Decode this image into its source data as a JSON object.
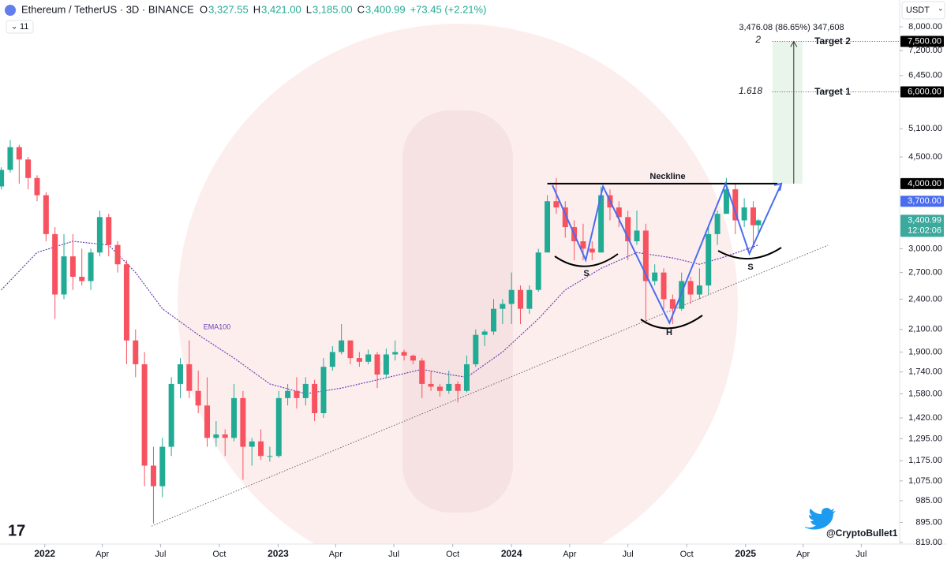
{
  "chart_data": {
    "type": "candlestick",
    "log_scale": true,
    "up_color": "#22ab94",
    "down_color": "#f7525f",
    "xlim": [
      "2021-10-23",
      "2025-08-30"
    ],
    "ylim": [
      813,
      9006
    ],
    "xticks": [
      {
        "value": "2022-01-01",
        "label": "2022"
      },
      {
        "value": "2022-04-01",
        "label": "Apr"
      },
      {
        "value": "2022-07-01",
        "label": "Jul"
      },
      {
        "value": "2022-10-01",
        "label": "Oct"
      },
      {
        "value": "2023-01-01",
        "label": "2023"
      },
      {
        "value": "2023-04-01",
        "label": "Apr"
      },
      {
        "value": "2023-07-01",
        "label": "Jul"
      },
      {
        "value": "2023-10-01",
        "label": "Oct"
      },
      {
        "value": "2024-01-01",
        "label": "2024"
      },
      {
        "value": "2024-04-01",
        "label": "Apr"
      },
      {
        "value": "2024-07-01",
        "label": "Jul"
      },
      {
        "value": "2024-10-01",
        "label": "Oct"
      },
      {
        "value": "2025-01-01",
        "label": "2025"
      },
      {
        "value": "2025-04-01",
        "label": "Apr"
      },
      {
        "value": "2025-07-01",
        "label": "Jul"
      }
    ],
    "yticks": [
      {
        "value": 8000,
        "label": "8,000.00"
      },
      {
        "value": 7200,
        "label": "7,200.00"
      },
      {
        "value": 6450,
        "label": "6,450.00"
      },
      {
        "value": 5100,
        "label": "5,100.00"
      },
      {
        "value": 4500,
        "label": "4,500.00"
      },
      {
        "value": 3000,
        "label": "3,000.00"
      },
      {
        "value": 2700,
        "label": "2,700.00"
      },
      {
        "value": 2400,
        "label": "2,400.00"
      },
      {
        "value": 2100,
        "label": "2,100.00"
      },
      {
        "value": 1900,
        "label": "1,900.00"
      },
      {
        "value": 1740,
        "label": "1,740.00"
      },
      {
        "value": 1580,
        "label": "1,580.00"
      },
      {
        "value": 1420,
        "label": "1,420.00"
      },
      {
        "value": 1295,
        "label": "1,295.00"
      },
      {
        "value": 1175,
        "label": "1,175.00"
      },
      {
        "value": 1075,
        "label": "1,075.00"
      },
      {
        "value": 985,
        "label": "985.00"
      },
      {
        "value": 895,
        "label": "895.00"
      },
      {
        "value": 819,
        "label": "819.00"
      }
    ],
    "price_labels": [
      {
        "value": 7500,
        "label": "7,500.00",
        "color": "#000000"
      },
      {
        "value": 6000,
        "label": "6,000.00",
        "color": "#000000"
      },
      {
        "value": 4000,
        "label": "4,000.00",
        "color": "#000000"
      },
      {
        "value": 3700,
        "label": "3,700.00",
        "color": "#4a6cf0"
      },
      {
        "value": 3400.99,
        "label": "3,400.99",
        "sub": "12:02:06",
        "color": "#3ba99c"
      }
    ],
    "candles": [
      {
        "t": "2021-10-25",
        "o": 3950,
        "h": 4300,
        "l": 3900,
        "c": 4250
      },
      {
        "t": "2021-11-08",
        "o": 4250,
        "h": 4850,
        "l": 4200,
        "c": 4700
      },
      {
        "t": "2021-11-22",
        "o": 4700,
        "h": 4750,
        "l": 4000,
        "c": 4450
      },
      {
        "t": "2021-12-06",
        "o": 4450,
        "h": 4500,
        "l": 3900,
        "c": 4100
      },
      {
        "t": "2021-12-20",
        "o": 4100,
        "h": 4150,
        "l": 3700,
        "c": 3800
      },
      {
        "t": "2022-01-03",
        "o": 3800,
        "h": 3850,
        "l": 3100,
        "c": 3200
      },
      {
        "t": "2022-01-17",
        "o": 3200,
        "h": 3300,
        "l": 2200,
        "c": 2450
      },
      {
        "t": "2022-01-31",
        "o": 2450,
        "h": 3200,
        "l": 2400,
        "c": 2900
      },
      {
        "t": "2022-02-14",
        "o": 2900,
        "h": 3200,
        "l": 2500,
        "c": 2650
      },
      {
        "t": "2022-02-28",
        "o": 2650,
        "h": 3000,
        "l": 2550,
        "c": 2600
      },
      {
        "t": "2022-03-14",
        "o": 2600,
        "h": 3000,
        "l": 2500,
        "c": 2950
      },
      {
        "t": "2022-03-28",
        "o": 2950,
        "h": 3550,
        "l": 2900,
        "c": 3450
      },
      {
        "t": "2022-04-11",
        "o": 3450,
        "h": 3500,
        "l": 2900,
        "c": 3050
      },
      {
        "t": "2022-04-25",
        "o": 3050,
        "h": 3100,
        "l": 2700,
        "c": 2800
      },
      {
        "t": "2022-05-09",
        "o": 2800,
        "h": 2850,
        "l": 1800,
        "c": 2000
      },
      {
        "t": "2022-05-23",
        "o": 2000,
        "h": 2100,
        "l": 1700,
        "c": 1800
      },
      {
        "t": "2022-06-06",
        "o": 1800,
        "h": 1900,
        "l": 1050,
        "c": 1150
      },
      {
        "t": "2022-06-20",
        "o": 1150,
        "h": 1250,
        "l": 890,
        "c": 1050
      },
      {
        "t": "2022-07-04",
        "o": 1050,
        "h": 1300,
        "l": 1000,
        "c": 1250
      },
      {
        "t": "2022-07-18",
        "o": 1250,
        "h": 1700,
        "l": 1200,
        "c": 1650
      },
      {
        "t": "2022-08-01",
        "o": 1650,
        "h": 1850,
        "l": 1550,
        "c": 1800
      },
      {
        "t": "2022-08-15",
        "o": 1800,
        "h": 2000,
        "l": 1550,
        "c": 1600
      },
      {
        "t": "2022-08-29",
        "o": 1600,
        "h": 1750,
        "l": 1450,
        "c": 1500
      },
      {
        "t": "2022-09-12",
        "o": 1500,
        "h": 1700,
        "l": 1250,
        "c": 1300
      },
      {
        "t": "2022-09-26",
        "o": 1300,
        "h": 1400,
        "l": 1250,
        "c": 1320
      },
      {
        "t": "2022-10-10",
        "o": 1320,
        "h": 1350,
        "l": 1200,
        "c": 1300
      },
      {
        "t": "2022-10-24",
        "o": 1300,
        "h": 1650,
        "l": 1280,
        "c": 1550
      },
      {
        "t": "2022-11-07",
        "o": 1550,
        "h": 1600,
        "l": 1080,
        "c": 1250
      },
      {
        "t": "2022-11-21",
        "o": 1250,
        "h": 1300,
        "l": 1150,
        "c": 1280
      },
      {
        "t": "2022-12-05",
        "o": 1280,
        "h": 1350,
        "l": 1180,
        "c": 1200
      },
      {
        "t": "2022-12-19",
        "o": 1200,
        "h": 1250,
        "l": 1170,
        "c": 1200
      },
      {
        "t": "2023-01-02",
        "o": 1200,
        "h": 1600,
        "l": 1190,
        "c": 1550
      },
      {
        "t": "2023-01-16",
        "o": 1550,
        "h": 1650,
        "l": 1500,
        "c": 1600
      },
      {
        "t": "2023-01-30",
        "o": 1600,
        "h": 1700,
        "l": 1480,
        "c": 1550
      },
      {
        "t": "2023-02-13",
        "o": 1550,
        "h": 1700,
        "l": 1500,
        "c": 1650
      },
      {
        "t": "2023-02-27",
        "o": 1650,
        "h": 1680,
        "l": 1400,
        "c": 1450
      },
      {
        "t": "2023-03-13",
        "o": 1450,
        "h": 1850,
        "l": 1420,
        "c": 1780
      },
      {
        "t": "2023-03-27",
        "o": 1780,
        "h": 1950,
        "l": 1750,
        "c": 1900
      },
      {
        "t": "2023-04-10",
        "o": 1900,
        "h": 2150,
        "l": 1880,
        "c": 2000
      },
      {
        "t": "2023-04-24",
        "o": 2000,
        "h": 2000,
        "l": 1800,
        "c": 1850
      },
      {
        "t": "2023-05-08",
        "o": 1850,
        "h": 1900,
        "l": 1780,
        "c": 1820
      },
      {
        "t": "2023-05-22",
        "o": 1820,
        "h": 1920,
        "l": 1800,
        "c": 1880
      },
      {
        "t": "2023-06-05",
        "o": 1880,
        "h": 1900,
        "l": 1620,
        "c": 1720
      },
      {
        "t": "2023-06-19",
        "o": 1720,
        "h": 1930,
        "l": 1700,
        "c": 1880
      },
      {
        "t": "2023-07-03",
        "o": 1880,
        "h": 2000,
        "l": 1830,
        "c": 1900
      },
      {
        "t": "2023-07-17",
        "o": 1900,
        "h": 1920,
        "l": 1830,
        "c": 1870
      },
      {
        "t": "2023-07-31",
        "o": 1870,
        "h": 1880,
        "l": 1800,
        "c": 1830
      },
      {
        "t": "2023-08-14",
        "o": 1830,
        "h": 1850,
        "l": 1550,
        "c": 1650
      },
      {
        "t": "2023-08-28",
        "o": 1650,
        "h": 1750,
        "l": 1600,
        "c": 1630
      },
      {
        "t": "2023-09-11",
        "o": 1630,
        "h": 1650,
        "l": 1560,
        "c": 1600
      },
      {
        "t": "2023-09-25",
        "o": 1600,
        "h": 1750,
        "l": 1580,
        "c": 1650
      },
      {
        "t": "2023-10-09",
        "o": 1650,
        "h": 1670,
        "l": 1520,
        "c": 1600
      },
      {
        "t": "2023-10-23",
        "o": 1600,
        "h": 1870,
        "l": 1590,
        "c": 1800
      },
      {
        "t": "2023-11-06",
        "o": 1800,
        "h": 2100,
        "l": 1780,
        "c": 2050
      },
      {
        "t": "2023-11-20",
        "o": 2050,
        "h": 2100,
        "l": 1950,
        "c": 2080
      },
      {
        "t": "2023-12-04",
        "o": 2080,
        "h": 2400,
        "l": 2050,
        "c": 2300
      },
      {
        "t": "2023-12-18",
        "o": 2300,
        "h": 2400,
        "l": 2150,
        "c": 2350
      },
      {
        "t": "2024-01-01",
        "o": 2350,
        "h": 2700,
        "l": 2150,
        "c": 2500
      },
      {
        "t": "2024-01-15",
        "o": 2500,
        "h": 2550,
        "l": 2150,
        "c": 2300
      },
      {
        "t": "2024-01-29",
        "o": 2300,
        "h": 2550,
        "l": 2250,
        "c": 2500
      },
      {
        "t": "2024-02-12",
        "o": 2500,
        "h": 3000,
        "l": 2480,
        "c": 2950
      },
      {
        "t": "2024-02-26",
        "o": 2950,
        "h": 3800,
        "l": 2950,
        "c": 3700
      },
      {
        "t": "2024-03-11",
        "o": 3700,
        "h": 4100,
        "l": 3500,
        "c": 3600
      },
      {
        "t": "2024-03-25",
        "o": 3600,
        "h": 3700,
        "l": 3150,
        "c": 3300
      },
      {
        "t": "2024-04-08",
        "o": 3300,
        "h": 3400,
        "l": 2850,
        "c": 3100
      },
      {
        "t": "2024-04-22",
        "o": 3100,
        "h": 3350,
        "l": 2850,
        "c": 3000
      },
      {
        "t": "2024-05-06",
        "o": 3000,
        "h": 3100,
        "l": 2850,
        "c": 2950
      },
      {
        "t": "2024-05-20",
        "o": 2950,
        "h": 3950,
        "l": 2950,
        "c": 3800
      },
      {
        "t": "2024-06-03",
        "o": 3800,
        "h": 3900,
        "l": 3400,
        "c": 3600
      },
      {
        "t": "2024-06-17",
        "o": 3600,
        "h": 3700,
        "l": 3300,
        "c": 3450
      },
      {
        "t": "2024-07-01",
        "o": 3450,
        "h": 3550,
        "l": 2850,
        "c": 3100
      },
      {
        "t": "2024-07-15",
        "o": 3100,
        "h": 3550,
        "l": 3050,
        "c": 3250
      },
      {
        "t": "2024-07-29",
        "o": 3250,
        "h": 3350,
        "l": 2150,
        "c": 2600
      },
      {
        "t": "2024-08-12",
        "o": 2600,
        "h": 2800,
        "l": 2550,
        "c": 2700
      },
      {
        "t": "2024-08-26",
        "o": 2700,
        "h": 2750,
        "l": 2300,
        "c": 2400
      },
      {
        "t": "2024-09-09",
        "o": 2400,
        "h": 2450,
        "l": 2150,
        "c": 2300
      },
      {
        "t": "2024-09-23",
        "o": 2300,
        "h": 2700,
        "l": 2280,
        "c": 2600
      },
      {
        "t": "2024-10-07",
        "o": 2600,
        "h": 2650,
        "l": 2350,
        "c": 2450
      },
      {
        "t": "2024-10-21",
        "o": 2450,
        "h": 2750,
        "l": 2400,
        "c": 2550
      },
      {
        "t": "2024-11-04",
        "o": 2550,
        "h": 3300,
        "l": 2450,
        "c": 3200
      },
      {
        "t": "2024-11-18",
        "o": 3200,
        "h": 3550,
        "l": 3050,
        "c": 3500
      },
      {
        "t": "2024-12-02",
        "o": 3500,
        "h": 4100,
        "l": 3500,
        "c": 3900
      },
      {
        "t": "2024-12-16",
        "o": 3900,
        "h": 4000,
        "l": 3200,
        "c": 3400
      },
      {
        "t": "2024-12-30",
        "o": 3400,
        "h": 3750,
        "l": 3300,
        "c": 3600
      },
      {
        "t": "2025-01-13",
        "o": 3600,
        "h": 3700,
        "l": 3000,
        "c": 3327.55
      },
      {
        "t": "2025-01-21",
        "o": 3327.55,
        "h": 3421,
        "l": 3185,
        "c": 3400.99
      }
    ],
    "ema": {
      "name": "EMA100",
      "color": "#6a3fb5",
      "x": [
        "2021-10-25",
        "2021-12-20",
        "2022-02-14",
        "2022-04-11",
        "2022-05-23",
        "2022-07-04",
        "2022-08-29",
        "2022-10-24",
        "2022-12-19",
        "2023-02-13",
        "2023-04-10",
        "2023-06-05",
        "2023-08-14",
        "2023-09-25",
        "2023-10-23",
        "2023-12-18",
        "2024-02-12",
        "2024-03-25",
        "2024-05-20",
        "2024-07-15",
        "2024-09-09",
        "2024-10-21",
        "2024-12-02",
        "2025-01-21"
      ],
      "values": [
        2500,
        2950,
        3100,
        3050,
        2700,
        2300,
        2050,
        1850,
        1650,
        1580,
        1620,
        1680,
        1760,
        1720,
        1700,
        1900,
        2200,
        2500,
        2750,
        2950,
        2880,
        2800,
        2900,
        3050
      ]
    },
    "pattern": {
      "color": "#4a6cf0",
      "x": [
        "2024-03-05",
        "2024-04-26",
        "2024-05-23",
        "2024-09-04",
        "2024-12-01",
        "2025-01-07",
        "2025-02-26"
      ],
      "values": [
        3971,
        2854,
        3950,
        2160,
        4000,
        2935,
        4000
      ]
    },
    "neckline": {
      "label": "Neckline",
      "x": [
        "2024-02-26",
        "2025-02-20"
      ],
      "value": 4000
    },
    "trendline": {
      "x": [
        "2022-06-17",
        "2025-05-10"
      ],
      "values": [
        880,
        3047
      ]
    },
    "target_zone": {
      "x": [
        "2025-02-12",
        "2025-03-31"
      ],
      "values": [
        4000,
        7500
      ]
    },
    "targets": [
      {
        "label": "Target 1",
        "fib": "1.618",
        "value": 6000
      },
      {
        "label": "Target 2",
        "fib": "2",
        "value": 7500
      }
    ],
    "measure": "3,476.08 (86.65%) 347,608",
    "shoulders": [
      "S",
      "H",
      "S"
    ]
  },
  "header": {
    "symbol": "Ethereum / TetherUS · 3D · BINANCE",
    "ohlc": [
      {
        "key": "O",
        "value": "3,327.55"
      },
      {
        "key": "H",
        "value": "3,421.00"
      },
      {
        "key": "L",
        "value": "3,185.00"
      },
      {
        "key": "C",
        "value": "3,400.99"
      }
    ],
    "change": "+73.45 (+2.21%)",
    "indicators": "11",
    "currency": "USDT",
    "author": "@CryptoBullet1"
  }
}
